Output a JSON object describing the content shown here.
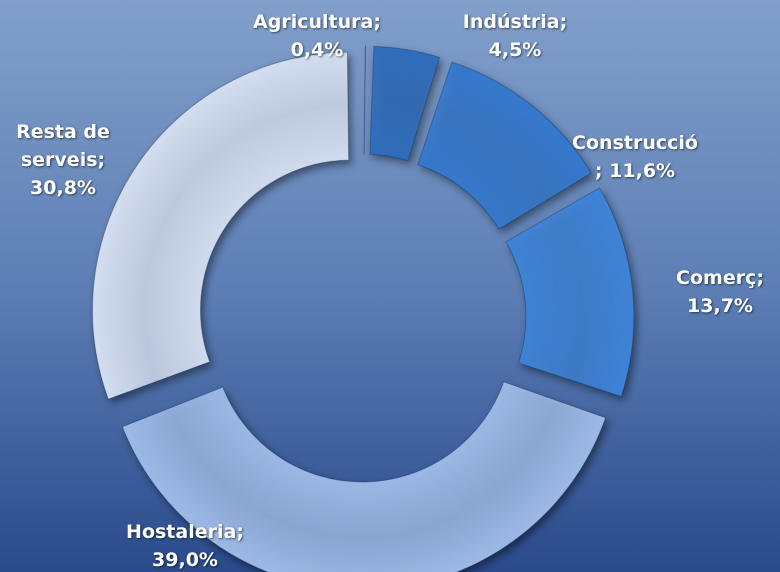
{
  "chart_data": {
    "type": "donut",
    "categories": [
      "Agricultura",
      "Indústria",
      "Construcció",
      "Comerç",
      "Hostaleria",
      "Resta de serveis"
    ],
    "values": [
      0.4,
      4.5,
      11.6,
      13.7,
      39.0,
      30.8
    ],
    "value_labels": [
      "0,4%",
      "4,5%",
      "11,6%",
      "13,7%",
      "39,0%",
      "30,8%"
    ],
    "separator": ";",
    "colors": [
      "#1d4f8f",
      "#2f6dbb",
      "#3679cc",
      "#3e83d6",
      "#9db9e5",
      "#d3ddf0"
    ]
  }
}
